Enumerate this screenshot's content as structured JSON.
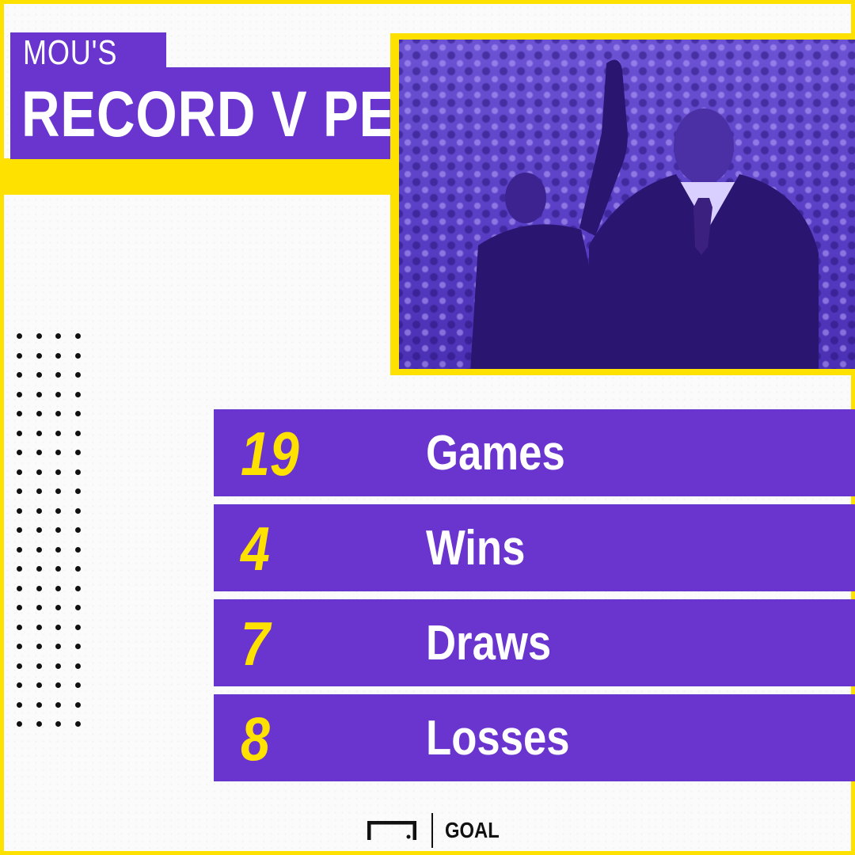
{
  "title": {
    "line1": "MOU'S",
    "line2": "RECORD V PEP"
  },
  "photo": {
    "icon": "managers-photo"
  },
  "stats": [
    {
      "value": "19",
      "label": "Games"
    },
    {
      "value": "4",
      "label": "Wins"
    },
    {
      "value": "7",
      "label": "Draws"
    },
    {
      "value": "8",
      "label": "Losses"
    }
  ],
  "logo": {
    "text": "GOAL",
    "icon": "goal-frame-icon"
  },
  "colors": {
    "accent": "#6a35cf",
    "highlight": "#ffe100",
    "text_light": "#ffffff",
    "text_dark": "#111111"
  }
}
